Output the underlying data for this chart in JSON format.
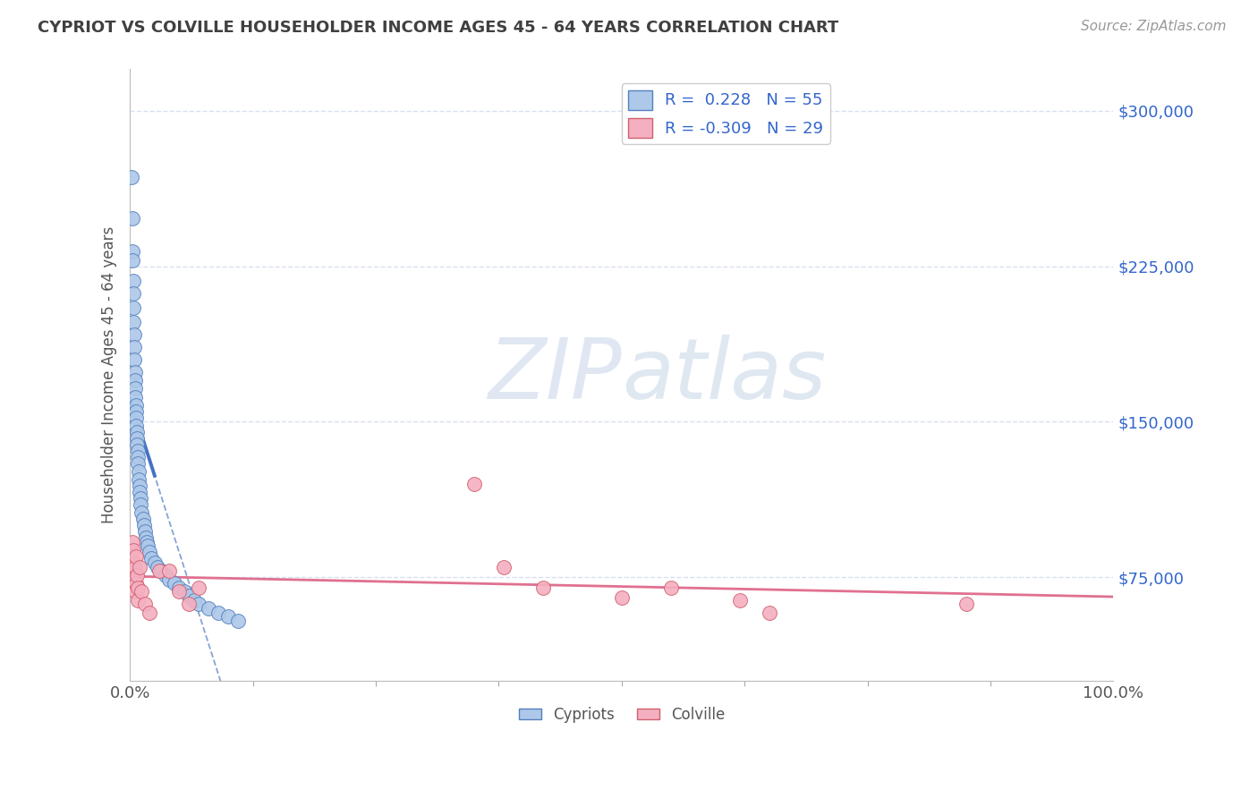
{
  "title": "CYPRIOT VS COLVILLE HOUSEHOLDER INCOME AGES 45 - 64 YEARS CORRELATION CHART",
  "source": "Source: ZipAtlas.com",
  "ylabel": "Householder Income Ages 45 - 64 years",
  "ytick_labels": [
    "$75,000",
    "$150,000",
    "$225,000",
    "$300,000"
  ],
  "ytick_values": [
    75000,
    150000,
    225000,
    300000
  ],
  "ylim": [
    25000,
    320000
  ],
  "xlim": [
    0.0,
    100.0
  ],
  "legend_r1": "R =  0.228",
  "legend_n1": "N = 55",
  "legend_r2": "R = -0.309",
  "legend_n2": "N = 29",
  "cypriot_color": "#adc8e8",
  "colville_color": "#f4b0c0",
  "cypriot_edge_color": "#5580c0",
  "colville_edge_color": "#d06070",
  "cypriot_line_color": "#4472c4",
  "colville_line_color": "#e07090",
  "watermark_color": "#ccd8ee",
  "background_color": "#ffffff",
  "grid_color": "#d8e0f0",
  "title_color": "#404040",
  "source_color": "#999999",
  "axis_color": "#bbbbbb",
  "right_tick_color": "#3366cc",
  "legend_text_color": "#3366cc",
  "bottom_legend_color": "#555555",
  "cypriot_x": [
    0.18,
    0.22,
    0.25,
    0.28,
    0.3,
    0.32,
    0.35,
    0.38,
    0.4,
    0.42,
    0.45,
    0.48,
    0.5,
    0.52,
    0.55,
    0.58,
    0.6,
    0.62,
    0.65,
    0.68,
    0.7,
    0.72,
    0.75,
    0.78,
    0.8,
    0.85,
    0.9,
    0.95,
    1.0,
    1.05,
    1.1,
    1.2,
    1.3,
    1.4,
    1.5,
    1.6,
    1.7,
    1.8,
    2.0,
    2.2,
    2.5,
    2.8,
    3.2,
    3.6,
    4.0,
    4.5,
    5.0,
    5.5,
    6.0,
    6.5,
    7.0,
    8.0,
    9.0,
    10.0,
    11.0
  ],
  "cypriot_y": [
    268000,
    248000,
    232000,
    228000,
    218000,
    212000,
    205000,
    198000,
    192000,
    186000,
    180000,
    174000,
    170000,
    166000,
    162000,
    158000,
    155000,
    152000,
    148000,
    145000,
    142000,
    139000,
    136000,
    133000,
    130000,
    126000,
    122000,
    119000,
    116000,
    113000,
    110000,
    106000,
    103000,
    100000,
    97000,
    94000,
    92000,
    90000,
    87000,
    84000,
    82000,
    80000,
    78000,
    76000,
    74000,
    72000,
    70000,
    68000,
    66000,
    64000,
    62000,
    60000,
    58000,
    56000,
    54000
  ],
  "colville_x": [
    0.2,
    0.3,
    0.35,
    0.4,
    0.45,
    0.5,
    0.55,
    0.6,
    0.65,
    0.7,
    0.75,
    0.8,
    1.0,
    1.2,
    1.5,
    2.0,
    3.0,
    4.0,
    5.0,
    6.0,
    7.0,
    35.0,
    38.0,
    42.0,
    50.0,
    55.0,
    62.0,
    65.0,
    85.0
  ],
  "colville_y": [
    92000,
    82000,
    88000,
    78000,
    74000,
    80000,
    68000,
    85000,
    72000,
    76000,
    64000,
    70000,
    80000,
    68000,
    62000,
    58000,
    78000,
    78000,
    68000,
    62000,
    70000,
    120000,
    80000,
    70000,
    65000,
    70000,
    64000,
    58000,
    62000
  ]
}
